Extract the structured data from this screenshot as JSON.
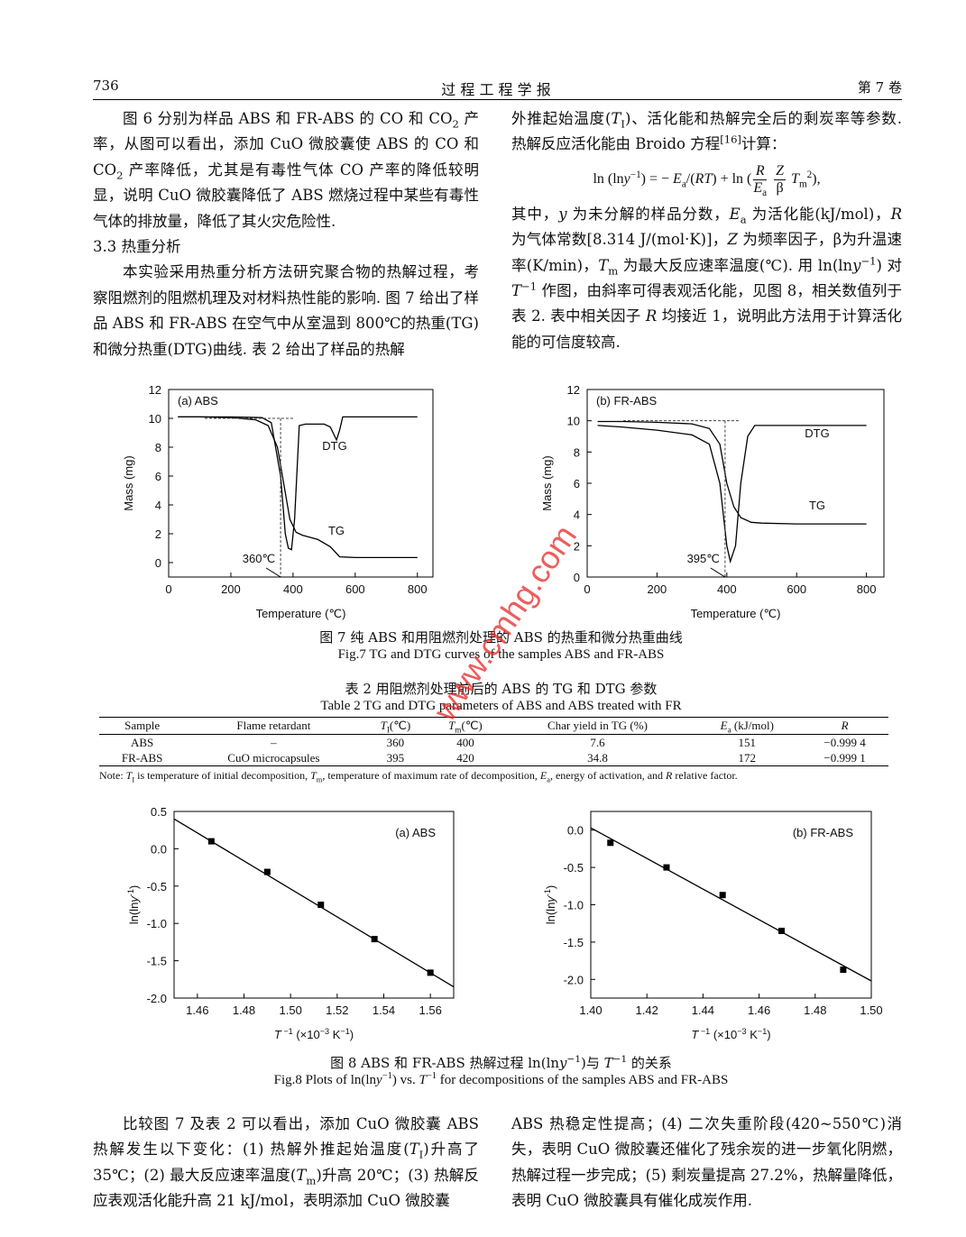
{
  "header": {
    "page": "736",
    "journal": "过 程 工 程 学 报",
    "volume": "第 7 卷"
  },
  "left_column": {
    "paragraph1": [
      "图 6 分别为样品 ABS 和 FR-ABS 的 CO 和 CO",
      {
        "sub": "2"
      },
      " 产率，从图可以看出，添加 CuO 微胶囊使 ABS 的 CO 和 CO",
      {
        "sub": "2"
      },
      " 产率降低，尤其是有毒性气体 CO 产率的降低较明显，说明 CuO 微胶囊降低了 ABS 燃烧过程中某些有毒性气体的排放量，降低了其火灾危险性."
    ],
    "heading": "3.3  热重分析",
    "paragraph2": [
      "本实验采用热重分析方法研究聚合物的热解过程，考察阻燃剂的阻燃机理及对材料热性能的影响. 图 7 给出了样品 ABS 和 FR-ABS 在空气中从室温到 800℃的热重(TG)和微分热重(DTG)曲线. 表 2 给出了样品的热解"
    ]
  },
  "right_column": {
    "paragraph1": [
      "外推起始温度(",
      {
        "i": "T"
      },
      {
        "sub": "I"
      },
      ")、活化能和热解完全后的剩炭率等参数. 热解反应活化能由 Broido 方程",
      {
        "sup": "[16]"
      },
      "计算："
    ],
    "equation": [
      "ln (ln",
      {
        "i": "y"
      },
      {
        "sup": "−1"
      },
      ")  =  − ",
      {
        "i": "E"
      },
      {
        "sub": "a"
      },
      "/(",
      {
        "i": "RT"
      },
      ")  +  ln (",
      {
        "frac": {
          "num": [
            {
              "i": "R"
            }
          ],
          "den": [
            {
              "i": "E"
            },
            {
              "sub": "a"
            }
          ]
        }
      },
      " ",
      {
        "frac": {
          "num": [
            {
              "i": "Z"
            }
          ],
          "den": [
            "β"
          ]
        }
      },
      " ",
      {
        "i": "T"
      },
      {
        "sub": "m"
      },
      {
        "sup": "2"
      },
      "),"
    ],
    "paragraph2": [
      "其中，",
      {
        "i": "y"
      },
      " 为未分解的样品分数，",
      {
        "i": "E"
      },
      {
        "sub": "a"
      },
      " 为活化能(kJ/mol)，",
      {
        "i": "R"
      },
      " 为气体常数[8.314 J/(mol·K)]，",
      {
        "i": "Z"
      },
      " 为频率因子，β为升温速率(K/min)，",
      {
        "i": "T"
      },
      {
        "sub": "m"
      },
      " 为最大反应速率温度(℃). 用 ln(ln",
      {
        "i": "y"
      },
      {
        "sup": "−1"
      },
      ") 对 ",
      {
        "i": "T"
      },
      {
        "sup": "−1"
      },
      " 作图，由斜率可得表观活化能，见图 8，相关数值列于表 2. 表中相关因子 ",
      {
        "i": "R"
      },
      " 均接近 1，说明此方法用于计算活化能的可信度较高."
    ]
  },
  "figure7_caption": {
    "zh": "图 7  纯 ABS 和用阻燃剂处理的 ABS 的热重和微分热重曲线",
    "en": "Fig.7  TG and DTG curves of the samples ABS and FR-ABS"
  },
  "table": {
    "caption_zh": "表 2  用阻燃剂处理前后的 ABS 的 TG 和 DTG 参数",
    "caption_en": "Table 2    TG and DTG parameters of ABS and ABS treated with FR",
    "header": [
      "Sample",
      "Flame retardant",
      [
        {
          "i": "T"
        },
        {
          "sub": "I"
        },
        "(℃)"
      ],
      [
        {
          "i": "T"
        },
        {
          "sub": "m"
        },
        "(℃)"
      ],
      "Char yield in TG (%)",
      [
        {
          "i": "E"
        },
        {
          "sub": "a"
        },
        " (kJ/mol)"
      ],
      [
        {
          "i": "R"
        }
      ]
    ],
    "rows": [
      [
        "ABS",
        "–",
        "360",
        "400",
        "7.6",
        "151",
        "−0.999 4"
      ],
      [
        "FR-ABS",
        "CuO microcapsules",
        "395",
        "420",
        "34.8",
        "172",
        "−0.999 1"
      ]
    ],
    "note": [
      "Note: ",
      {
        "i": "T"
      },
      {
        "sub": "I"
      },
      " is temperature of initial decomposition, ",
      {
        "i": "T"
      },
      {
        "sub": "m"
      },
      ", temperature of maximum rate of decomposition, ",
      {
        "i": "E"
      },
      {
        "sub": "a"
      },
      ", energy of activation, and ",
      {
        "i": "R"
      },
      " relative factor."
    ]
  },
  "figure8_caption": {
    "zh": [
      "图 8  ABS 和 FR-ABS 热解过程 ln(ln",
      {
        "i": "y"
      },
      {
        "sup": "−1"
      },
      ")与 ",
      {
        "i": "T"
      },
      {
        "sup": "−1"
      },
      " 的关系"
    ],
    "en": [
      "Fig.8  Plots of ln(ln",
      {
        "i": "y"
      },
      {
        "sup": "−1"
      },
      ") vs. ",
      {
        "i": "T"
      },
      {
        "sup": "−1"
      },
      " for decompositions of the samples ABS and FR-ABS"
    ]
  },
  "closing": {
    "left": [
      "比较图 7 及表 2 可以看出，添加 CuO 微胶囊 ABS 热解发生以下变化：(1) 热解外推起始温度(",
      {
        "i": "T"
      },
      {
        "sub": "I"
      },
      ")升高了 35℃；(2) 最大反应速率温度(",
      {
        "i": "T"
      },
      {
        "sub": "m"
      },
      ")升高 20℃；(3) 热解反应表观活化能升高 21 kJ/mol，表明添加 CuO 微胶囊"
    ],
    "right": [
      "ABS 热稳定性提高；(4) 二次失重阶段(420~550℃)消失，表明 CuO 微胶囊还催化了残余炭的进一步氧化阴燃，热解过程一步完成；(5) 剩炭量提高 27.2%，热解量降低，表明 CuO 微胶囊具有催化成炭作用."
    ]
  },
  "watermark": "www.cmhg.com",
  "chart_data": [
    {
      "type": "line",
      "title": "(a) ABS",
      "xlabel": "Temperature (℃)",
      "ylabel": "Mass (mg)",
      "xlim": [
        0,
        850
      ],
      "ylim": [
        -1,
        12
      ],
      "xticks": [
        0,
        200,
        400,
        600,
        800
      ],
      "yticks": [
        0,
        2,
        4,
        6,
        8,
        10,
        12
      ],
      "series": [
        {
          "name": "TG",
          "color": "#000000",
          "x": [
            30,
            100,
            200,
            280,
            320,
            350,
            370,
            390,
            410,
            430,
            480,
            520,
            550,
            600,
            700,
            800
          ],
          "values": [
            10.1,
            10.1,
            10.05,
            9.9,
            9.5,
            8,
            5.5,
            3,
            2.1,
            1.9,
            1.6,
            1.1,
            0.4,
            0.35,
            0.35,
            0.35
          ]
        },
        {
          "name": "DTG",
          "color": "#000000",
          "x": [
            30,
            100,
            200,
            300,
            330,
            360,
            375,
            385,
            395,
            405,
            420,
            440,
            500,
            520,
            540,
            550,
            560,
            600,
            800
          ],
          "values": [
            10.1,
            10.1,
            10.1,
            10.05,
            9.7,
            6,
            2,
            1,
            0.9,
            3,
            9.5,
            9.6,
            9.6,
            9.4,
            8.5,
            9.2,
            10.1,
            10.1,
            10.1
          ]
        }
      ],
      "onset": {
        "value": 360,
        "label": "360℃",
        "level": 10
      }
    },
    {
      "type": "line",
      "title": "(b) FR-ABS",
      "xlabel": "Temperature (℃)",
      "ylabel": "Mass (mg)",
      "xlim": [
        0,
        850
      ],
      "ylim": [
        0,
        12
      ],
      "xticks": [
        0,
        200,
        400,
        600,
        800
      ],
      "yticks": [
        0,
        2,
        4,
        6,
        8,
        10,
        12
      ],
      "series": [
        {
          "name": "TG",
          "color": "#000000",
          "x": [
            30,
            100,
            200,
            300,
            350,
            380,
            400,
            420,
            440,
            470,
            500,
            600,
            800
          ],
          "values": [
            9.95,
            9.95,
            9.9,
            9.8,
            9.5,
            8.5,
            6,
            4.5,
            3.8,
            3.5,
            3.45,
            3.4,
            3.4
          ]
        },
        {
          "name": "DTG",
          "color": "#000000",
          "x": [
            30,
            100,
            200,
            300,
            350,
            380,
            400,
            410,
            425,
            440,
            460,
            480,
            600,
            800
          ],
          "values": [
            9.7,
            9.6,
            9.4,
            9.1,
            8.5,
            6,
            2,
            1,
            2,
            6,
            9,
            9.7,
            9.7,
            9.7
          ]
        }
      ],
      "onset": {
        "value": 395,
        "label": "395℃",
        "level": 10
      }
    },
    {
      "type": "scatter",
      "title": "(a) ABS",
      "xlabel": [
        {
          "i": "T"
        },
        {
          "sup": " −1"
        },
        " (×10",
        {
          "sup": "−3"
        },
        " K",
        {
          "sup": "−1"
        },
        ")"
      ],
      "ylabel": [
        "ln(ln",
        {
          "i": "y"
        },
        {
          "sup": "-1"
        },
        ")"
      ],
      "xlim": [
        1.45,
        1.57
      ],
      "ylim": [
        -2,
        0.5
      ],
      "xticks": [
        1.46,
        1.48,
        {
          "value": 1.5,
          "label": "1.50"
        },
        1.52,
        1.54,
        1.56
      ],
      "yticks": [
        0.5,
        {
          "value": 0,
          "label": "0.0"
        },
        -0.5,
        {
          "value": -1,
          "label": "-1.0"
        },
        -1.5,
        {
          "value": -2,
          "label": "-2.0"
        }
      ],
      "series": [
        {
          "color": "#000000",
          "marker": "square",
          "x": [
            1.466,
            1.49,
            1.513,
            1.536,
            1.56
          ],
          "values": [
            0.1,
            -0.31,
            -0.75,
            -1.21,
            -1.66
          ]
        },
        {
          "color": "#000000",
          "mode": "line",
          "x": [
            1.45,
            1.57
          ],
          "values": [
            0.4,
            -1.85
          ]
        }
      ]
    },
    {
      "type": "scatter",
      "title": "(b) FR-ABS",
      "xlabel": [
        {
          "i": "T"
        },
        {
          "sup": " −1"
        },
        " (×10",
        {
          "sup": "−3"
        },
        " K",
        {
          "sup": "−1"
        },
        ")"
      ],
      "ylabel": [
        "ln(ln",
        {
          "i": "y"
        },
        {
          "sup": "-1"
        },
        ")"
      ],
      "xlim": [
        1.4,
        1.5
      ],
      "ylim": [
        -2.25,
        0.25
      ],
      "xticks": [
        {
          "value": 1.4,
          "label": "1.40"
        },
        1.42,
        1.44,
        1.46,
        1.48,
        {
          "value": 1.5,
          "label": "1.50"
        }
      ],
      "yticks": [
        {
          "value": 0,
          "label": "0.0"
        },
        -0.5,
        {
          "value": -1,
          "label": "-1.0"
        },
        -1.5,
        {
          "value": -2,
          "label": "-2.0"
        }
      ],
      "series": [
        {
          "color": "#000000",
          "marker": "square",
          "x": [
            1.407,
            1.427,
            1.447,
            1.468,
            1.49
          ],
          "values": [
            -0.17,
            -0.5,
            -0.87,
            -1.35,
            -1.87
          ]
        },
        {
          "color": "#000000",
          "mode": "line",
          "x": [
            1.4,
            1.5
          ],
          "values": [
            0.03,
            -2.02
          ]
        }
      ]
    }
  ]
}
